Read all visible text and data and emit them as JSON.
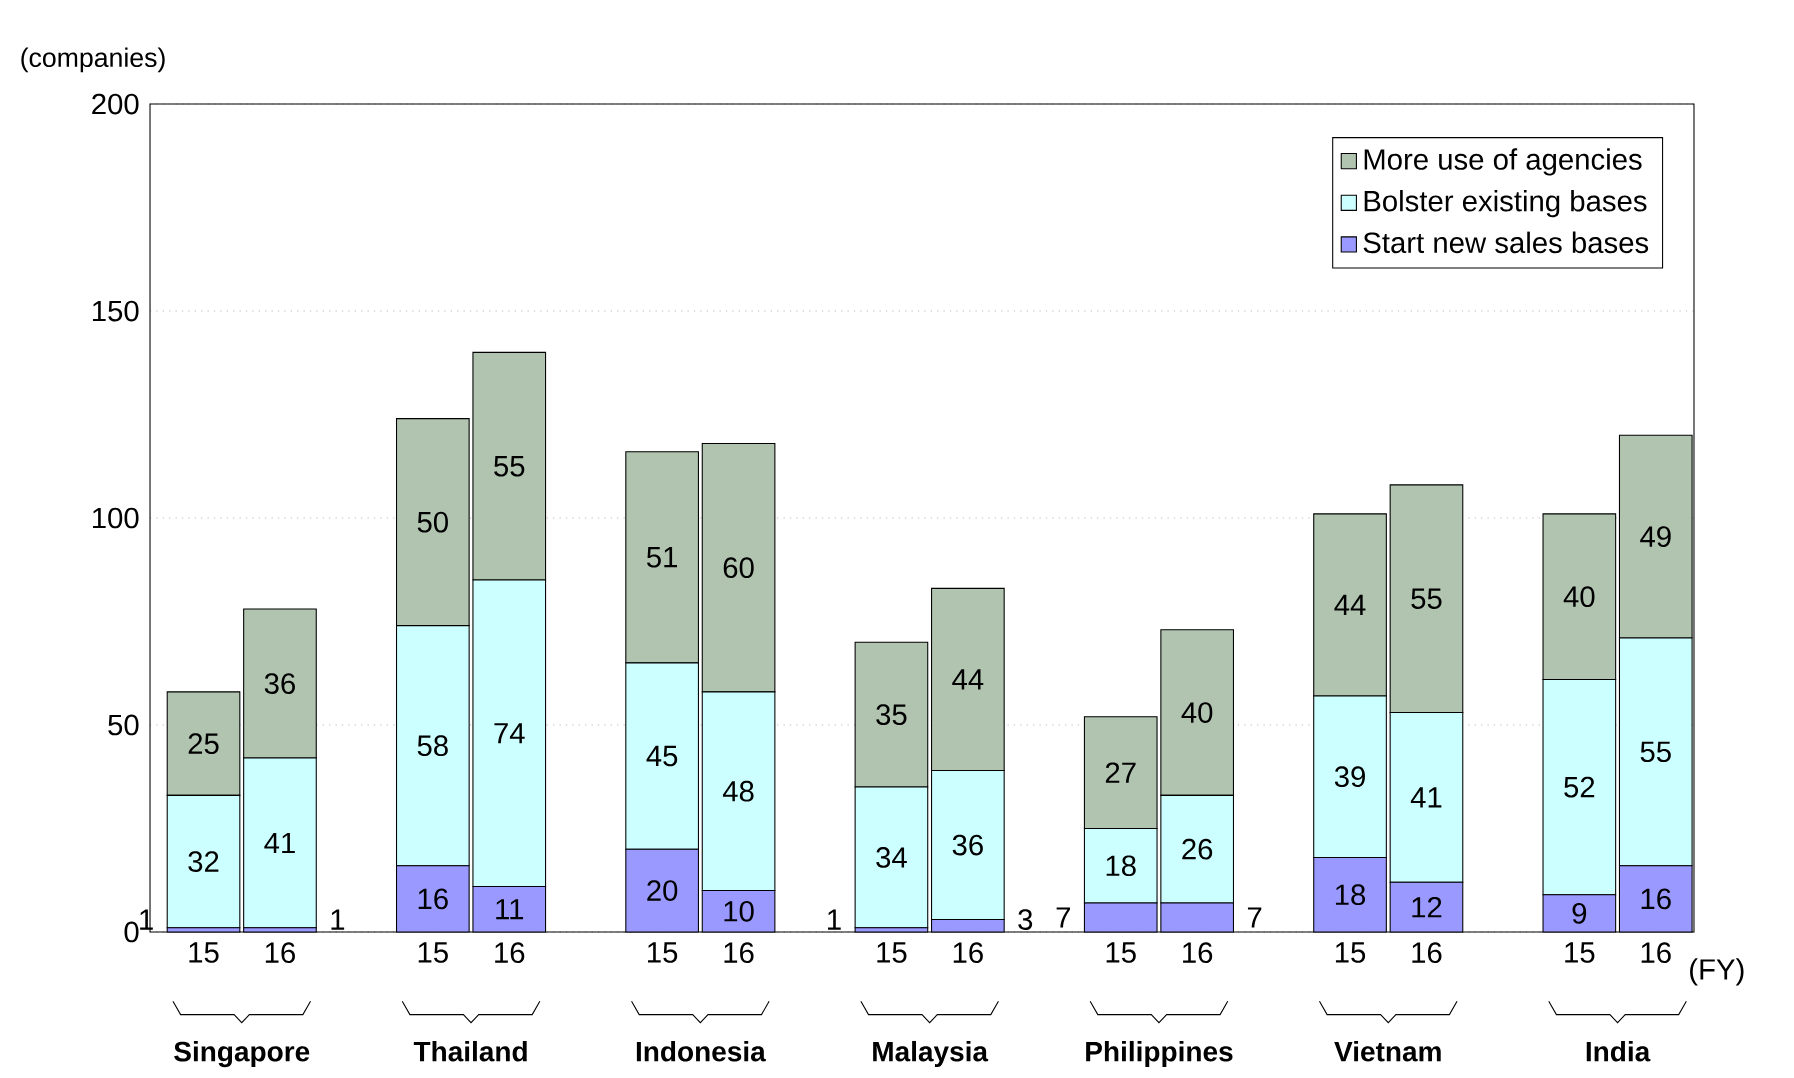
{
  "chart_data": {
    "type": "bar",
    "stacked": true,
    "ylabel": "(companies)",
    "xlabel": "(FY)",
    "categories": [
      "15",
      "16",
      "15",
      "16",
      "15",
      "16",
      "15",
      "16",
      "15",
      "16",
      "15",
      "16",
      "15",
      "16"
    ],
    "series": [
      {
        "name": "Start new sales bases",
        "color": "#9999ff",
        "values": [
          1,
          1,
          16,
          11,
          20,
          10,
          1,
          3,
          7,
          7,
          18,
          12,
          9,
          16
        ]
      },
      {
        "name": "Bolster existing bases",
        "color": "#ccffff",
        "values": [
          32,
          41,
          58,
          74,
          45,
          48,
          34,
          36,
          18,
          26,
          39,
          41,
          52,
          55
        ]
      },
      {
        "name": "More use of agencies",
        "color": "#b0c4b0",
        "values": [
          25,
          36,
          50,
          55,
          51,
          60,
          35,
          44,
          27,
          40,
          44,
          55,
          40,
          49
        ]
      }
    ],
    "ylim": [
      0,
      200
    ],
    "yticks": [
      0,
      50,
      100,
      150,
      200
    ],
    "grid": "y",
    "legend": "top right",
    "data_labels": true,
    "annotations": [
      "Singapore",
      "Thailand",
      "Indonesia",
      "Malaysia",
      "Philippines",
      "Vietnam",
      "India"
    ]
  }
}
